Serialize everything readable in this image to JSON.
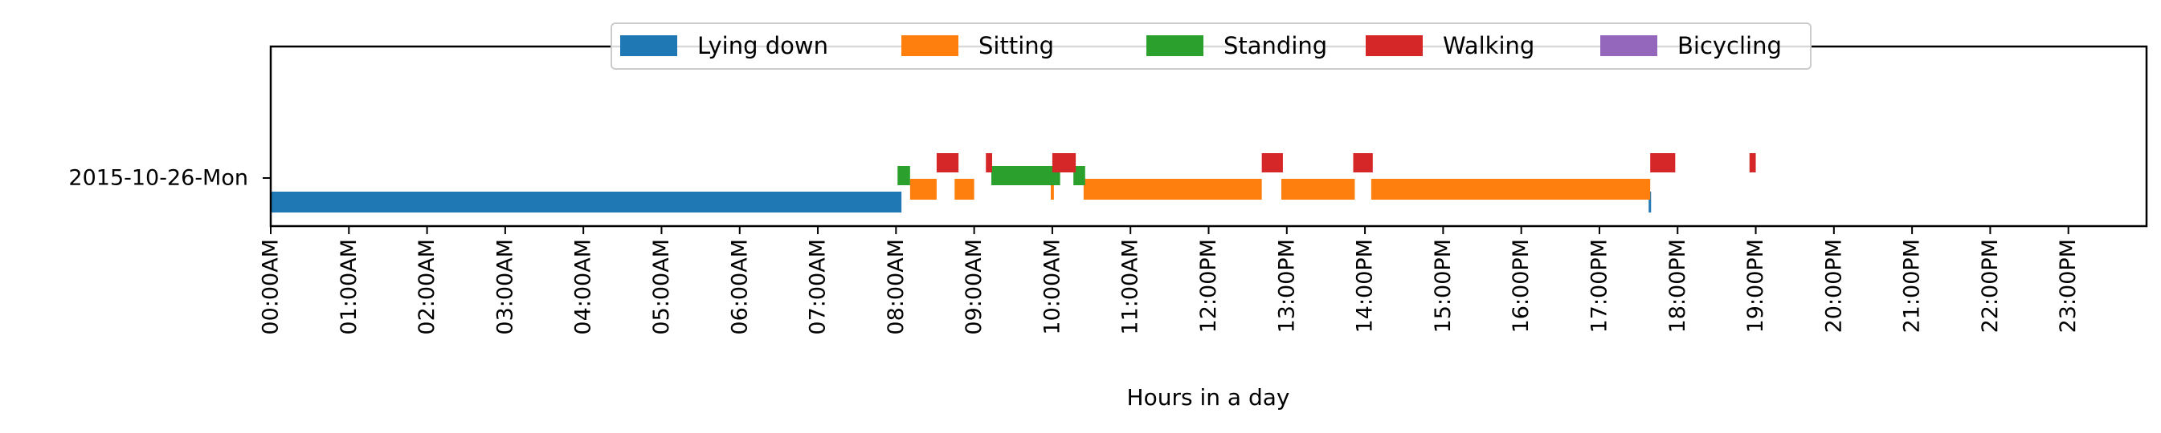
{
  "chart_data": {
    "type": "bar",
    "orientation": "horizontal-timeline",
    "title": "",
    "xlabel": "Hours in a day",
    "ylabel": "",
    "xlim": [
      0,
      24
    ],
    "x_tick_labels": [
      "00:00AM",
      "01:00AM",
      "02:00AM",
      "03:00AM",
      "04:00AM",
      "05:00AM",
      "06:00AM",
      "07:00AM",
      "08:00AM",
      "09:00AM",
      "10:00AM",
      "11:00AM",
      "12:00PM",
      "13:00PM",
      "14:00PM",
      "15:00PM",
      "16:00PM",
      "17:00PM",
      "18:00PM",
      "19:00PM",
      "20:00PM",
      "21:00PM",
      "22:00PM",
      "23:00PM"
    ],
    "categories": [
      "2015-10-26-Mon"
    ],
    "grid": false,
    "legend_position": "top-center",
    "series": [
      {
        "name": "Lying down",
        "color": "#1f77b4",
        "intervals": [
          [
            0.0,
            8.07
          ],
          [
            17.63,
            17.66
          ]
        ]
      },
      {
        "name": "Sitting",
        "color": "#ff7f0e",
        "intervals": [
          [
            8.18,
            8.52
          ],
          [
            8.75,
            9.0
          ],
          [
            9.98,
            10.02
          ],
          [
            10.4,
            12.68
          ],
          [
            12.93,
            13.87
          ],
          [
            14.08,
            17.65
          ]
        ]
      },
      {
        "name": "Standing",
        "color": "#2ca02c",
        "intervals": [
          [
            8.02,
            8.18
          ],
          [
            9.22,
            10.1
          ],
          [
            10.27,
            10.42
          ]
        ]
      },
      {
        "name": "Walking",
        "color": "#d62728",
        "intervals": [
          [
            8.52,
            8.8
          ],
          [
            9.15,
            9.23
          ],
          [
            10.0,
            10.3
          ],
          [
            12.68,
            12.95
          ],
          [
            13.85,
            14.1
          ],
          [
            17.65,
            17.97
          ],
          [
            18.92,
            19.0
          ]
        ]
      },
      {
        "name": "Bicycling",
        "color": "#9467bd",
        "intervals": []
      }
    ]
  }
}
